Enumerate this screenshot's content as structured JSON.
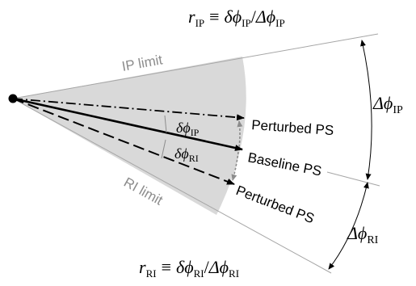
{
  "colors": {
    "background": "#ffffff",
    "shade": "#d9d9d9",
    "ink": "#000000",
    "limit_label": "#8c8c8c",
    "boundary": "#a6a6a6",
    "delta_arrow": "#8c8c8c"
  },
  "labels": {
    "ip_limit": "IP limit",
    "ri_limit": "RI limit",
    "perturbed_ps_top": "Perturbed PS",
    "baseline_ps": "Baseline PS",
    "perturbed_ps_bottom": "Perturbed PS"
  },
  "formulas": {
    "r_ip": {
      "r": "r",
      "r_sub": "IP",
      "equiv": "≡",
      "delta_phi": "δϕ",
      "delta_phi_sub": "IP",
      "slash": "/",
      "Delta_phi": "Δϕ",
      "Delta_phi_sub": "IP"
    },
    "r_ri": {
      "r": "r",
      "r_sub": "RI",
      "equiv": "≡",
      "delta_phi": "δϕ",
      "delta_phi_sub": "RI",
      "slash": "/",
      "Delta_phi": "Δϕ",
      "Delta_phi_sub": "RI"
    }
  },
  "angle_labels": {
    "small_ip": {
      "sym": "δϕ",
      "sub": "IP"
    },
    "small_ri": {
      "sym": "δϕ",
      "sub": "RI"
    },
    "large_ip": {
      "sym": "Δϕ",
      "sub": "IP"
    },
    "large_ri": {
      "sym": "Δϕ",
      "sub": "RI"
    }
  }
}
